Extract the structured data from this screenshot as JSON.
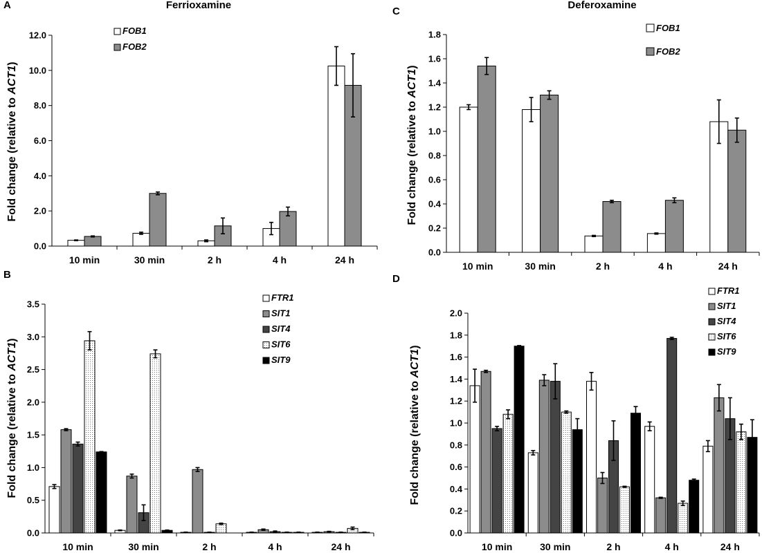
{
  "chart_data": [
    {
      "panel": "A",
      "type": "bar",
      "title": "Ferrioxamine",
      "ylabel": "Fold change (relative to ACT1)",
      "categories": [
        "10 min",
        "30 min",
        "2 h",
        "4 h",
        "24 h"
      ],
      "ylim": [
        0,
        12
      ],
      "yticks": [
        "0.0",
        "2.0",
        "4.0",
        "6.0",
        "8.0",
        "10.0",
        "12.0"
      ],
      "legend": "top-left",
      "series": [
        {
          "name": "FOB1",
          "fill": "white",
          "values": [
            0.33,
            0.73,
            0.3,
            1.0,
            10.25
          ],
          "errors": [
            0.02,
            0.06,
            0.05,
            0.35,
            1.1
          ]
        },
        {
          "name": "FOB2",
          "fill": "gray",
          "values": [
            0.55,
            3.0,
            1.15,
            1.97,
            9.15
          ],
          "errors": [
            0.03,
            0.08,
            0.45,
            0.25,
            1.8
          ]
        }
      ]
    },
    {
      "panel": "C",
      "type": "bar",
      "title": "Deferoxamine",
      "ylabel": "Fold change (relative to ACT1)",
      "categories": [
        "10 min",
        "30 min",
        "2 h",
        "4 h",
        "24 h"
      ],
      "ylim": [
        0,
        1.8
      ],
      "yticks": [
        "0.0",
        "0.2",
        "0.4",
        "0.6",
        "0.8",
        "1.0",
        "1.2",
        "1.4",
        "1.6",
        "1.8"
      ],
      "legend": "top-right",
      "series": [
        {
          "name": "FOB1",
          "fill": "white",
          "values": [
            1.2,
            1.18,
            0.135,
            0.155,
            1.08
          ],
          "errors": [
            0.02,
            0.1,
            0.005,
            0.005,
            0.18
          ]
        },
        {
          "name": "FOB2",
          "fill": "gray",
          "values": [
            1.54,
            1.3,
            0.42,
            0.43,
            1.01
          ],
          "errors": [
            0.07,
            0.035,
            0.01,
            0.02,
            0.1
          ]
        }
      ]
    },
    {
      "panel": "B",
      "type": "bar",
      "ylabel": "Fold change (relative to ACT1)",
      "categories": [
        "10 min",
        "30 min",
        "2 h",
        "4 h",
        "24 h"
      ],
      "ylim": [
        0,
        3.5
      ],
      "yticks": [
        "0.0",
        "0.5",
        "1.0",
        "1.5",
        "2.0",
        "2.5",
        "3.0",
        "3.5"
      ],
      "legend": "top-right",
      "series": [
        {
          "name": "FTR1",
          "fill": "white",
          "values": [
            0.71,
            0.04,
            0.01,
            0.01,
            0.01
          ],
          "errors": [
            0.03,
            0.005,
            0.003,
            0.003,
            0.003
          ]
        },
        {
          "name": "SIT1",
          "fill": "gray",
          "values": [
            1.58,
            0.87,
            0.97,
            0.05,
            0.02
          ],
          "errors": [
            0.015,
            0.03,
            0.03,
            0.01,
            0.005
          ]
        },
        {
          "name": "SIT4",
          "fill": "darkgray",
          "values": [
            1.36,
            0.31,
            0.01,
            0.02,
            0.01
          ],
          "errors": [
            0.03,
            0.12,
            0.003,
            0.01,
            0.003
          ]
        },
        {
          "name": "SIT6",
          "fill": "dotted",
          "values": [
            2.94,
            2.74,
            0.14,
            0.01,
            0.07
          ],
          "errors": [
            0.14,
            0.06,
            0.01,
            0.003,
            0.02
          ]
        },
        {
          "name": "SIT9",
          "fill": "black",
          "values": [
            1.24,
            0.04,
            0.0,
            0.01,
            0.01
          ],
          "errors": [
            0.005,
            0.005,
            0.0,
            0.003,
            0.003
          ]
        }
      ]
    },
    {
      "panel": "D",
      "type": "bar",
      "ylabel": "Fold change (relative to ACT1)",
      "categories": [
        "10 min",
        "30 min",
        "2 h",
        "4 h",
        "24 h"
      ],
      "ylim": [
        0,
        2.0
      ],
      "yticks": [
        "0.0",
        "0.2",
        "0.4",
        "0.6",
        "0.8",
        "1.0",
        "1.2",
        "1.4",
        "1.6",
        "1.8",
        "2.0"
      ],
      "legend": "top-right",
      "series": [
        {
          "name": "FTR1",
          "fill": "white",
          "values": [
            1.34,
            0.73,
            1.38,
            0.97,
            0.79
          ],
          "errors": [
            0.15,
            0.02,
            0.08,
            0.04,
            0.05
          ]
        },
        {
          "name": "SIT1",
          "fill": "gray",
          "values": [
            1.47,
            1.39,
            0.5,
            0.32,
            1.23
          ],
          "errors": [
            0.01,
            0.05,
            0.05,
            0.005,
            0.12
          ]
        },
        {
          "name": "SIT4",
          "fill": "darkgray",
          "values": [
            0.95,
            1.38,
            0.84,
            1.77,
            1.04
          ],
          "errors": [
            0.02,
            0.16,
            0.18,
            0.01,
            0.19
          ]
        },
        {
          "name": "SIT6",
          "fill": "dotted",
          "values": [
            1.08,
            1.1,
            0.42,
            0.27,
            0.92
          ],
          "errors": [
            0.04,
            0.01,
            0.005,
            0.02,
            0.07
          ]
        },
        {
          "name": "SIT9",
          "fill": "black",
          "values": [
            1.7,
            0.94,
            1.09,
            0.48,
            0.87
          ],
          "errors": [
            0.005,
            0.1,
            0.06,
            0.01,
            0.16
          ]
        }
      ]
    }
  ],
  "colors": {
    "white": "#ffffff",
    "gray": "#8c8c8c",
    "darkgray": "#444444",
    "black": "#000000",
    "dotted_bg": "#ffffff",
    "dotted_dot": "#6a6a6a"
  }
}
